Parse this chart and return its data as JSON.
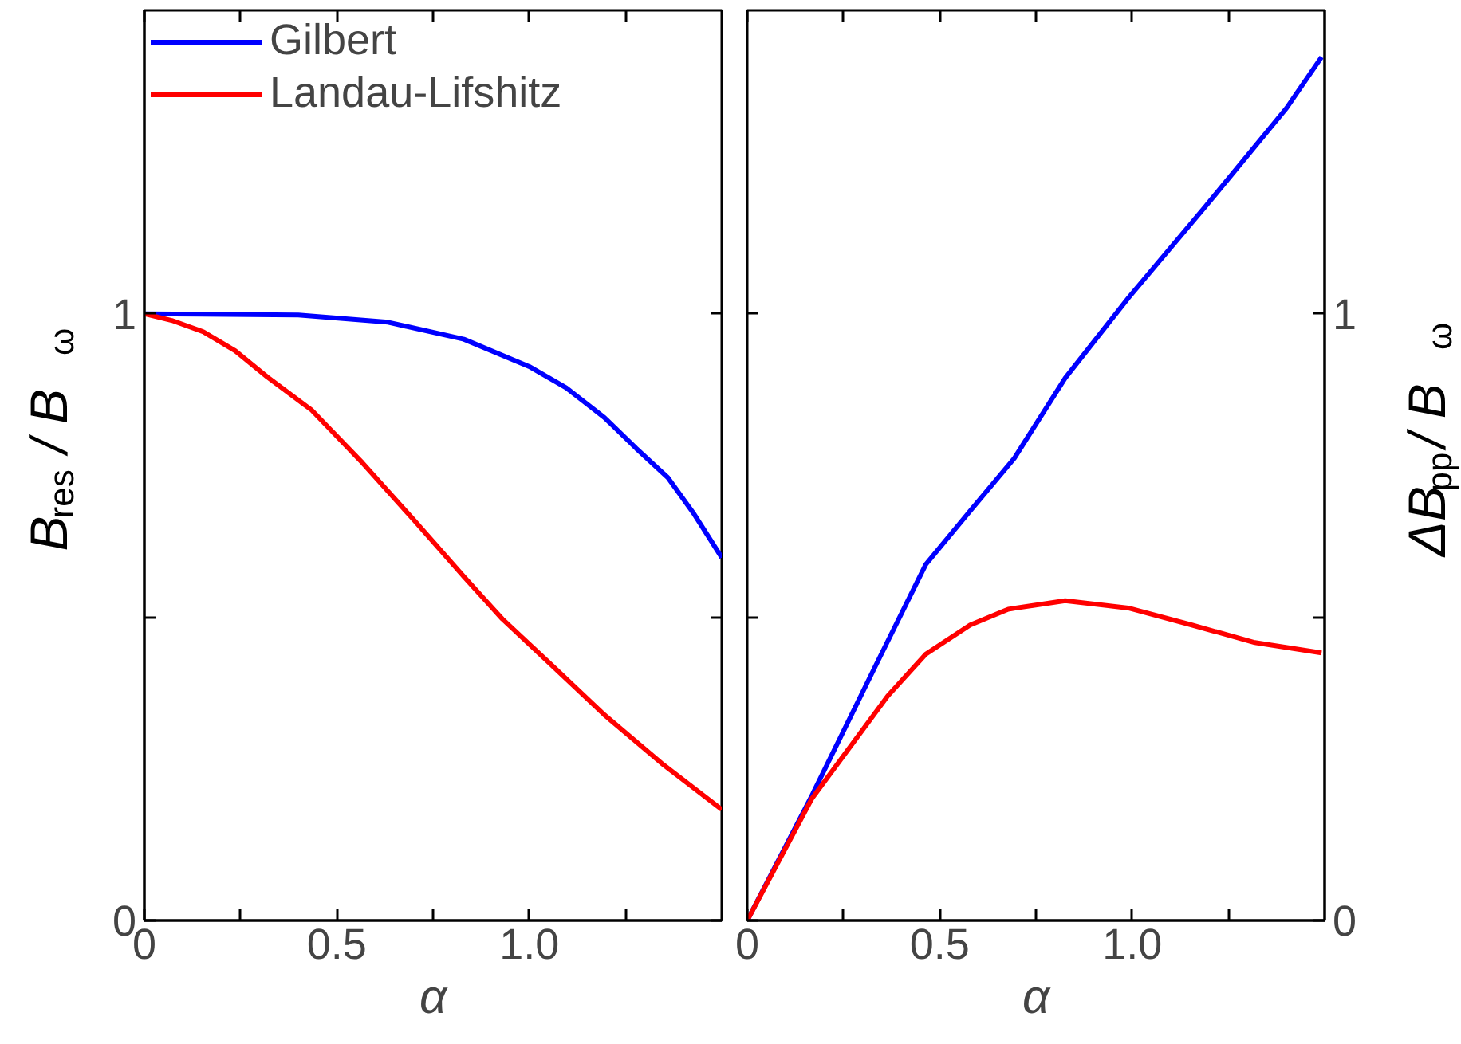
{
  "chart_data": [
    {
      "type": "line",
      "xlabel": "α",
      "ylabel": "B$_{res}$/ B$_{ω}$",
      "xlim": [
        0,
        1.5
      ],
      "ylim": [
        0,
        1.5
      ],
      "xticks": [
        0,
        {
          "value": 0.25,
          "label": null
        },
        {
          "value": 0.5,
          "label": "0.5"
        },
        {
          "value": 0.75,
          "label": null
        },
        {
          "value": 1.0,
          "label": "1.0"
        },
        {
          "value": 1.25,
          "label": null
        }
      ],
      "yticks": [
        0,
        {
          "value": 0.5,
          "label": null
        },
        1
      ],
      "legend": "top left",
      "grid": false,
      "series": [
        {
          "name": "Gilbert",
          "color": "#0000ff",
          "x": [
            0,
            0.4,
            0.633,
            0.83,
            1.0,
            1.096,
            1.195,
            1.278,
            1.36,
            1.426,
            1.5
          ],
          "values": [
            1.0,
            0.998,
            0.986,
            0.958,
            0.913,
            0.878,
            0.829,
            0.778,
            0.73,
            0.672,
            0.598
          ]
        },
        {
          "name": "Landau-Lifshitz",
          "color": "#ff0000",
          "x": [
            0,
            0.071,
            0.154,
            0.236,
            0.319,
            0.435,
            0.567,
            0.699,
            0.831,
            0.93,
            1.063,
            1.195,
            1.344,
            1.5
          ],
          "values": [
            1.0,
            0.989,
            0.97,
            0.939,
            0.896,
            0.841,
            0.754,
            0.661,
            0.566,
            0.497,
            0.418,
            0.339,
            0.259,
            0.183
          ]
        }
      ]
    },
    {
      "type": "line",
      "xlabel": "α",
      "ylabel": "ΔB$_{pp}$/ B$_{ω}$",
      "xlim": [
        0,
        1.5
      ],
      "ylim": [
        0,
        1.5
      ],
      "xticks": [
        0,
        {
          "value": 0.25,
          "label": null
        },
        {
          "value": 0.5,
          "label": "0.5"
        },
        {
          "value": 0.75,
          "label": null
        },
        {
          "value": 1.0,
          "label": "1.0"
        },
        {
          "value": 1.25,
          "label": null
        }
      ],
      "yticks": [
        0,
        {
          "value": 0.5,
          "label": null
        },
        1
      ],
      "grid": false,
      "series": [
        {
          "color": "#0000ff",
          "x": [
            0,
            0.168,
            0.332,
            0.464,
            0.579,
            0.694,
            0.826,
            0.99,
            1.188,
            1.401,
            1.492
          ],
          "values": [
            0,
            0.206,
            0.418,
            0.587,
            0.675,
            0.762,
            0.894,
            1.026,
            1.175,
            1.339,
            1.423
          ]
        },
        {
          "color": "#ff0000",
          "x": [
            0,
            0.168,
            0.365,
            0.464,
            0.579,
            0.678,
            0.826,
            0.99,
            1.155,
            1.319,
            1.492
          ],
          "values": [
            0,
            0.201,
            0.37,
            0.439,
            0.487,
            0.513,
            0.527,
            0.515,
            0.487,
            0.458,
            0.441
          ]
        }
      ]
    }
  ]
}
